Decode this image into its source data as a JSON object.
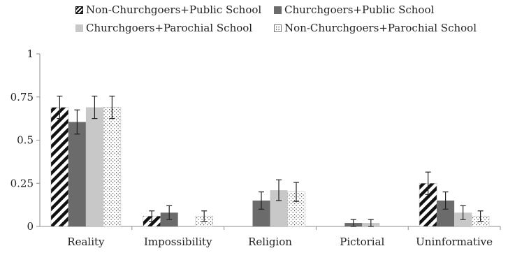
{
  "chart_data": {
    "type": "bar",
    "title": "",
    "xlabel": "",
    "ylabel": "",
    "ylim": [
      0,
      1
    ],
    "yticks": [
      0,
      0.25,
      0.5,
      0.75,
      1
    ],
    "ytick_labels": [
      "0",
      "0.25",
      "0.5",
      "0.75",
      "1"
    ],
    "categories": [
      "Reality",
      "Impossibility",
      "Religion",
      "Pictorial",
      "Uninformative"
    ],
    "legend_position": "top",
    "grid": false,
    "error_bars": true,
    "series": [
      {
        "name": "Non-Churchgoers+Public School",
        "pattern": "diagonal-stripes",
        "color": "#111111",
        "values": [
          0.69,
          0.06,
          0.0,
          0.0,
          0.25
        ],
        "errors": [
          0.065,
          0.03,
          0.0,
          0.0,
          0.065
        ]
      },
      {
        "name": "Churchgoers+Public School",
        "pattern": "solid",
        "color": "#6b6b6b",
        "values": [
          0.605,
          0.08,
          0.15,
          0.02,
          0.15
        ],
        "errors": [
          0.07,
          0.04,
          0.05,
          0.02,
          0.05
        ]
      },
      {
        "name": "Churchgoers+Parochial School",
        "pattern": "solid",
        "color": "#c8c8c8",
        "values": [
          0.69,
          0.0,
          0.21,
          0.02,
          0.08
        ],
        "errors": [
          0.065,
          0.0,
          0.06,
          0.02,
          0.04
        ]
      },
      {
        "name": "Non-Churchgoers+Parochial School",
        "pattern": "dotted",
        "color": "#555555",
        "values": [
          0.69,
          0.06,
          0.2,
          0.0,
          0.06
        ],
        "errors": [
          0.065,
          0.03,
          0.055,
          0.0,
          0.03
        ]
      }
    ]
  }
}
